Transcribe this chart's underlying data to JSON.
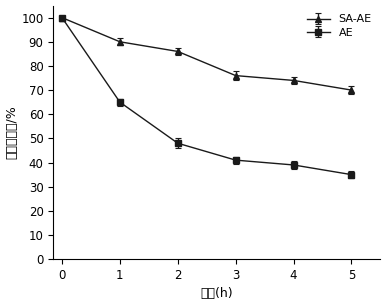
{
  "x": [
    0,
    1,
    2,
    3,
    4,
    5
  ],
  "sa_ae_y": [
    100,
    90,
    86,
    76,
    74,
    70
  ],
  "sa_ae_yerr": [
    0,
    1.5,
    1.5,
    2,
    1.5,
    1.5
  ],
  "ae_y": [
    100,
    65,
    48,
    41,
    39,
    35
  ],
  "ae_yerr": [
    0,
    1.5,
    2,
    1.5,
    1.5,
    1.5
  ],
  "xlabel": "时间(h)",
  "ylabel": "相对酶活力/%",
  "xlim": [
    -0.15,
    5.5
  ],
  "ylim": [
    0,
    105
  ],
  "yticks": [
    0,
    10,
    20,
    30,
    40,
    50,
    60,
    70,
    80,
    90,
    100
  ],
  "xticks": [
    0,
    1,
    2,
    3,
    4,
    5
  ],
  "legend_sa_ae": "SA-AE",
  "legend_ae": "AE",
  "line_color": "#1a1a1a",
  "marker_sa_ae": "^",
  "marker_ae": "s",
  "marker_size": 4.5,
  "linewidth": 1.0
}
